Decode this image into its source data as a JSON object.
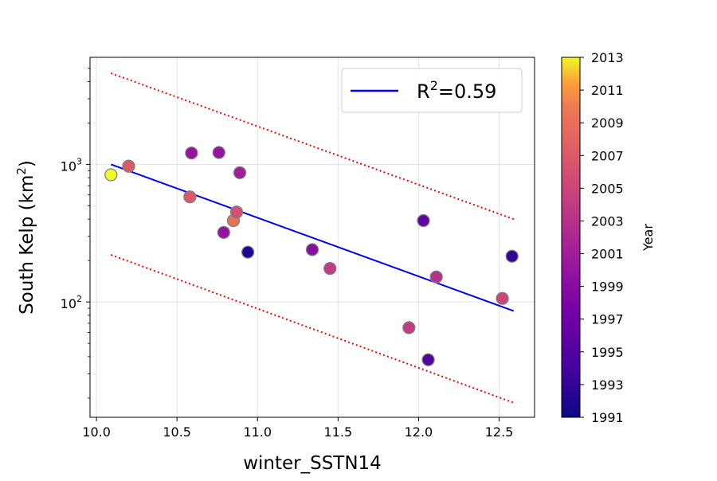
{
  "chart_data": {
    "type": "scatter",
    "xlabel": "winter_SSTN14",
    "ylabel_main": "South Kelp (km",
    "ylabel_sup": "2",
    "ylabel_end": ")",
    "y_scale": "log",
    "xlim": [
      9.96,
      12.72
    ],
    "ylim": [
      14.5,
      6000
    ],
    "x_ticks": [
      "10.0",
      "10.5",
      "11.0",
      "11.5",
      "12.0",
      "12.5"
    ],
    "x_tick_values": [
      10.0,
      10.5,
      11.0,
      11.5,
      12.0,
      12.5
    ],
    "y_ticks": [
      {
        "value": 100,
        "base": "10",
        "exp": "2"
      },
      {
        "value": 1000,
        "base": "10",
        "exp": "3"
      }
    ],
    "grid": true,
    "legend": {
      "position": "top-right",
      "label_prefix": "R",
      "label_sup": "2",
      "label_suffix": "=0.59"
    },
    "colorbar": {
      "label": "Year",
      "min": 1991,
      "max": 2013,
      "ticks": [
        "1991",
        "1993",
        "1995",
        "1997",
        "1999",
        "2001",
        "2003",
        "2005",
        "2007",
        "2009",
        "2011",
        "2013"
      ],
      "colormap": "plasma"
    },
    "points": [
      {
        "x": 10.09,
        "y": 840,
        "year": 2013
      },
      {
        "x": 10.2,
        "y": 970,
        "year": 2007
      },
      {
        "x": 10.58,
        "y": 580,
        "year": 2007
      },
      {
        "x": 10.59,
        "y": 1210,
        "year": 2000
      },
      {
        "x": 10.76,
        "y": 1220,
        "year": 2000
      },
      {
        "x": 10.79,
        "y": 320,
        "year": 2000
      },
      {
        "x": 10.85,
        "y": 390,
        "year": 2009
      },
      {
        "x": 10.87,
        "y": 450,
        "year": 2006
      },
      {
        "x": 10.89,
        "y": 870,
        "year": 2001
      },
      {
        "x": 10.94,
        "y": 230,
        "year": 1992
      },
      {
        "x": 11.34,
        "y": 240,
        "year": 1999
      },
      {
        "x": 11.45,
        "y": 175,
        "year": 2004
      },
      {
        "x": 11.94,
        "y": 65,
        "year": 2004
      },
      {
        "x": 12.03,
        "y": 390,
        "year": 1996
      },
      {
        "x": 12.06,
        "y": 38,
        "year": 1995
      },
      {
        "x": 12.11,
        "y": 152,
        "year": 2003
      },
      {
        "x": 12.52,
        "y": 106,
        "year": 2005
      },
      {
        "x": 12.58,
        "y": 215,
        "year": 1993
      }
    ],
    "fit_line": {
      "color": "#0000ff",
      "x": [
        10.09,
        12.59
      ],
      "y": [
        1000,
        86
      ]
    },
    "upper_bound": {
      "color": "#ff0000",
      "style": "dotted",
      "x": [
        10.09,
        12.59
      ],
      "y": [
        4600,
        400
      ]
    },
    "lower_bound": {
      "color": "#ff0000",
      "style": "dotted",
      "x": [
        10.09,
        12.59
      ],
      "y": [
        220,
        18.5
      ]
    }
  }
}
